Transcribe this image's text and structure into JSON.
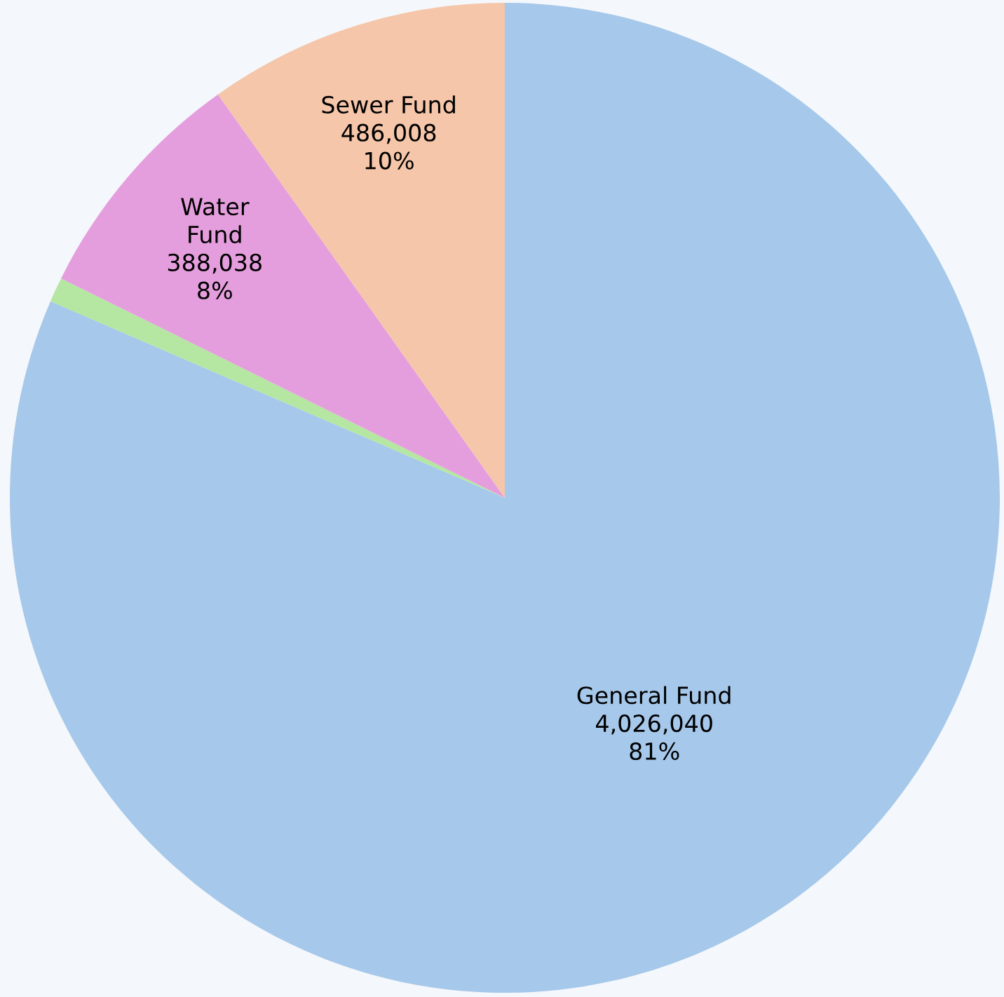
{
  "chart_data": {
    "type": "pie",
    "categories": [
      "General Fund",
      null,
      "Water Fund",
      "Sewer Fund"
    ],
    "values": [
      4026040,
      40000,
      388038,
      486008
    ],
    "colors": [
      "#a6c8ea",
      "#b5e6a2",
      "#e59edd",
      "#f5c6a9"
    ],
    "value_labels": [
      "4,026,040\n81%",
      null,
      "388,038\n8%",
      "486,008\n10%"
    ]
  }
}
